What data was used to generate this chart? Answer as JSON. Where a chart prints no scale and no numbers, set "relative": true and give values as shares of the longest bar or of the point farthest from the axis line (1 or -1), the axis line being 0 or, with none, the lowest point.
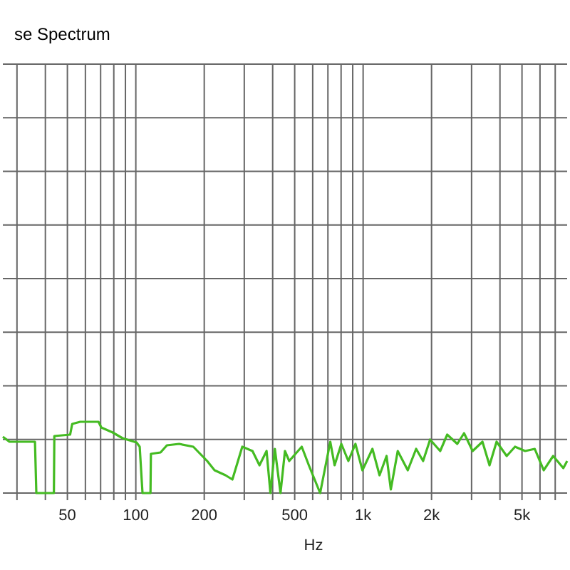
{
  "chart_data": {
    "type": "line",
    "title": "se Spectrum",
    "xlabel": "Hz",
    "log": "x",
    "relative": true,
    "grid": true,
    "line_style": "solid",
    "xlim": [
      26,
      7900
    ],
    "xticks": [
      {
        "value": 30,
        "label": null
      },
      {
        "value": 40,
        "label": null
      },
      50,
      {
        "value": 60,
        "label": null
      },
      {
        "value": 70,
        "label": null
      },
      {
        "value": 80,
        "label": null
      },
      {
        "value": 90,
        "label": null
      },
      100,
      200,
      {
        "value": 300,
        "label": null
      },
      {
        "value": 400,
        "label": null
      },
      500,
      {
        "value": 600,
        "label": null
      },
      {
        "value": 700,
        "label": null
      },
      {
        "value": 800,
        "label": null
      },
      {
        "value": 900,
        "label": null
      },
      {
        "value": 1000,
        "label": "1k"
      },
      {
        "value": 2000,
        "label": "2k"
      },
      {
        "value": 3000,
        "label": null
      },
      {
        "value": 4000,
        "label": null
      },
      {
        "value": 5000,
        "label": "5k"
      },
      {
        "value": 6000,
        "label": null
      },
      {
        "value": 7000,
        "label": null
      }
    ],
    "series": [
      {
        "color": "#44bb22",
        "x": [
          26,
          27.8,
          36,
          36.5,
          43.6,
          43.8,
          51.4,
          52.5,
          56.9,
          68.5,
          70.5,
          79.1,
          87.4,
          100.7,
          104,
          107,
          116,
          116.5,
          128.5,
          137,
          155,
          179,
          192,
          206,
          222,
          248,
          266,
          294,
          326,
          350,
          376,
          391,
          409,
          433,
          453,
          473,
          537,
          577,
          647,
          717,
          749,
          802,
          861,
          925,
          993,
          1099,
          1181,
          1268,
          1324,
          1420,
          1572,
          1711,
          1836,
          1971,
          2183,
          2344,
          2596,
          2780,
          3033,
          3350,
          3598,
          3865,
          4283,
          4659,
          5163,
          5689,
          6228,
          6855,
          7600,
          7900
        ],
        "values": [
          0.79,
          0.72,
          0.72,
          0,
          0,
          0.8,
          0.82,
          0.97,
          1,
          1,
          0.92,
          0.85,
          0.77,
          0.71,
          0.65,
          0,
          0,
          0.55,
          0.57,
          0.67,
          0.69,
          0.65,
          0.55,
          0.45,
          0.32,
          0.25,
          0.19,
          0.65,
          0.59,
          0.39,
          0.59,
          0,
          0.62,
          0,
          0.59,
          0.45,
          0.65,
          0.39,
          0,
          0.72,
          0.39,
          0.69,
          0.45,
          0.69,
          0.32,
          0.62,
          0.25,
          0.52,
          0.05,
          0.59,
          0.32,
          0.62,
          0.45,
          0.75,
          0.59,
          0.82,
          0.69,
          0.84,
          0.59,
          0.72,
          0.39,
          0.72,
          0.52,
          0.65,
          0.59,
          0.62,
          0.32,
          0.52,
          0.35,
          0.45
        ]
      }
    ]
  }
}
